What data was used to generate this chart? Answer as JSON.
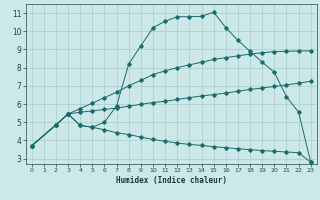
{
  "xlabel": "Humidex (Indice chaleur)",
  "bg_color": "#cce8e8",
  "grid_color": "#aacccc",
  "line_color": "#1a6b6b",
  "xlim": [
    -0.5,
    23.5
  ],
  "ylim": [
    2.7,
    11.5
  ],
  "xtick_vals": [
    0,
    1,
    2,
    3,
    4,
    5,
    6,
    7,
    8,
    9,
    10,
    11,
    12,
    13,
    14,
    15,
    16,
    17,
    18,
    19,
    20,
    21,
    22,
    23
  ],
  "ytick_vals": [
    3,
    4,
    5,
    6,
    7,
    8,
    9,
    10,
    11
  ],
  "series": [
    {
      "x": [
        0,
        2,
        3,
        4,
        5,
        6,
        7,
        8,
        9,
        10,
        11,
        12,
        13,
        14,
        15,
        16,
        17,
        18,
        19,
        20,
        21,
        22,
        23
      ],
      "y": [
        3.7,
        4.85,
        5.45,
        4.82,
        4.72,
        5.0,
        5.9,
        8.2,
        9.2,
        10.2,
        10.55,
        10.8,
        10.8,
        10.82,
        11.05,
        10.2,
        9.5,
        8.9,
        8.3,
        7.75,
        6.4,
        5.55,
        2.8
      ]
    },
    {
      "x": [
        0,
        2,
        3,
        4,
        5,
        6,
        7,
        8,
        9,
        10,
        11,
        12,
        13,
        14,
        15,
        16,
        17,
        18,
        19,
        20,
        21,
        22,
        23
      ],
      "y": [
        3.7,
        4.85,
        5.45,
        5.75,
        6.05,
        6.35,
        6.65,
        7.0,
        7.3,
        7.62,
        7.82,
        8.0,
        8.15,
        8.3,
        8.45,
        8.55,
        8.65,
        8.75,
        8.82,
        8.88,
        8.9,
        8.92,
        8.92
      ]
    },
    {
      "x": [
        0,
        2,
        3,
        4,
        5,
        6,
        7,
        8,
        9,
        10,
        11,
        12,
        13,
        14,
        15,
        16,
        17,
        18,
        19,
        20,
        21,
        22,
        23
      ],
      "y": [
        3.7,
        4.85,
        5.45,
        5.55,
        5.62,
        5.7,
        5.78,
        5.88,
        5.98,
        6.08,
        6.15,
        6.25,
        6.35,
        6.44,
        6.52,
        6.6,
        6.7,
        6.8,
        6.88,
        6.97,
        7.05,
        7.15,
        7.25
      ]
    },
    {
      "x": [
        0,
        2,
        3,
        4,
        5,
        6,
        7,
        8,
        9,
        10,
        11,
        12,
        13,
        14,
        15,
        16,
        17,
        18,
        19,
        20,
        21,
        22,
        23
      ],
      "y": [
        3.7,
        4.85,
        5.45,
        4.82,
        4.72,
        4.58,
        4.42,
        4.32,
        4.18,
        4.05,
        3.95,
        3.85,
        3.78,
        3.72,
        3.65,
        3.6,
        3.54,
        3.49,
        3.44,
        3.4,
        3.36,
        3.32,
        2.8
      ]
    }
  ]
}
